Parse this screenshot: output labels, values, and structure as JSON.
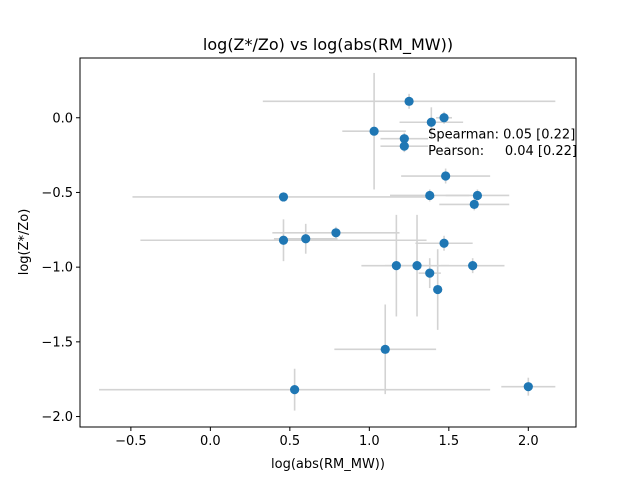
{
  "chart_data": {
    "type": "scatter",
    "title": "log(Z*/Zo) vs log(abs(RM_MW))",
    "xlabel": "log(abs(RM_MW))",
    "ylabel": "log(Z*/Zo)",
    "xlim": [
      -0.82,
      2.3
    ],
    "ylim": [
      -2.07,
      0.4
    ],
    "xticks": [
      -0.5,
      0.0,
      0.5,
      1.0,
      1.5,
      2.0
    ],
    "xtick_labels": [
      "−0.5",
      "0.0",
      "0.5",
      "1.0",
      "1.5",
      "2.0"
    ],
    "yticks": [
      -2.0,
      -1.5,
      -1.0,
      -0.5,
      0.0
    ],
    "ytick_labels": [
      "−2.0",
      "−1.5",
      "−1.0",
      "−0.5",
      "0.0"
    ],
    "grid": false,
    "point_color": "#1f77b4",
    "errorbar_color": "#d3d3d3",
    "annotations": [
      {
        "text": "Spearman: 0.05 [0.22]",
        "x": 1.37,
        "y": -0.14
      },
      {
        "text": "Pearson:     0.04 [0.22]",
        "x": 1.37,
        "y": -0.25
      }
    ],
    "points": [
      {
        "x": 1.25,
        "y": 0.11,
        "xerr": [
          0.92,
          0.92
        ],
        "yerr": [
          0.05,
          0.05
        ]
      },
      {
        "x": 1.47,
        "y": 0.0,
        "xerr": [
          0.05,
          0.05
        ],
        "yerr": [
          0.04,
          0.04
        ]
      },
      {
        "x": 1.39,
        "y": -0.03,
        "xerr": [
          0.2,
          0.2
        ],
        "yerr": [
          0.1,
          0.1
        ]
      },
      {
        "x": 1.03,
        "y": -0.09,
        "xerr": [
          0.2,
          0.2
        ],
        "yerr": [
          0.39,
          0.39
        ]
      },
      {
        "x": 1.22,
        "y": -0.14,
        "xerr": [
          0.15,
          0.15
        ],
        "yerr": [
          0.04,
          0.04
        ]
      },
      {
        "x": 1.22,
        "y": -0.19,
        "xerr": [
          0.15,
          0.15
        ],
        "yerr": [
          0.04,
          0.04
        ]
      },
      {
        "x": 1.48,
        "y": -0.39,
        "xerr": [
          0.28,
          0.28
        ],
        "yerr": [
          0.05,
          0.05
        ]
      },
      {
        "x": 1.38,
        "y": -0.52,
        "xerr": [
          0.25,
          0.25
        ],
        "yerr": [
          0.04,
          0.04
        ]
      },
      {
        "x": 1.68,
        "y": -0.52,
        "xerr": [
          0.2,
          0.2
        ],
        "yerr": [
          0.04,
          0.04
        ]
      },
      {
        "x": 0.46,
        "y": -0.53,
        "xerr": [
          0.95,
          0.95
        ],
        "yerr": [
          0.02,
          0.02
        ]
      },
      {
        "x": 1.66,
        "y": -0.58,
        "xerr": [
          0.22,
          0.22
        ],
        "yerr": [
          0.04,
          0.04
        ]
      },
      {
        "x": 0.79,
        "y": -0.77,
        "xerr": [
          0.4,
          0.4
        ],
        "yerr": [
          0.04,
          0.04
        ]
      },
      {
        "x": 0.6,
        "y": -0.81,
        "xerr": [
          0.2,
          0.2
        ],
        "yerr": [
          0.1,
          0.1
        ]
      },
      {
        "x": 0.46,
        "y": -0.82,
        "xerr": [
          0.9,
          0.9
        ],
        "yerr": [
          0.14,
          0.14
        ]
      },
      {
        "x": 1.47,
        "y": -0.84,
        "xerr": [
          0.18,
          0.18
        ],
        "yerr": [
          0.05,
          0.05
        ]
      },
      {
        "x": 1.17,
        "y": -0.99,
        "xerr": [
          0.22,
          0.22
        ],
        "yerr": [
          0.34,
          0.34
        ]
      },
      {
        "x": 1.3,
        "y": -0.99,
        "xerr": [
          0.2,
          0.2
        ],
        "yerr": [
          0.34,
          0.34
        ]
      },
      {
        "x": 1.65,
        "y": -0.99,
        "xerr": [
          0.2,
          0.2
        ],
        "yerr": [
          0.05,
          0.05
        ]
      },
      {
        "x": 1.38,
        "y": -1.04,
        "xerr": [
          0.07,
          0.07
        ],
        "yerr": [
          0.1,
          0.1
        ]
      },
      {
        "x": 1.43,
        "y": -1.15,
        "xerr": [
          0.03,
          0.03
        ],
        "yerr": [
          0.27,
          0.27
        ]
      },
      {
        "x": 1.1,
        "y": -1.55,
        "xerr": [
          0.32,
          0.32
        ],
        "yerr": [
          0.3,
          0.3
        ]
      },
      {
        "x": 0.53,
        "y": -1.82,
        "xerr": [
          1.23,
          1.23
        ],
        "yerr": [
          0.14,
          0.14
        ]
      },
      {
        "x": 2.0,
        "y": -1.8,
        "xerr": [
          0.17,
          0.17
        ],
        "yerr": [
          0.06,
          0.06
        ]
      }
    ]
  }
}
